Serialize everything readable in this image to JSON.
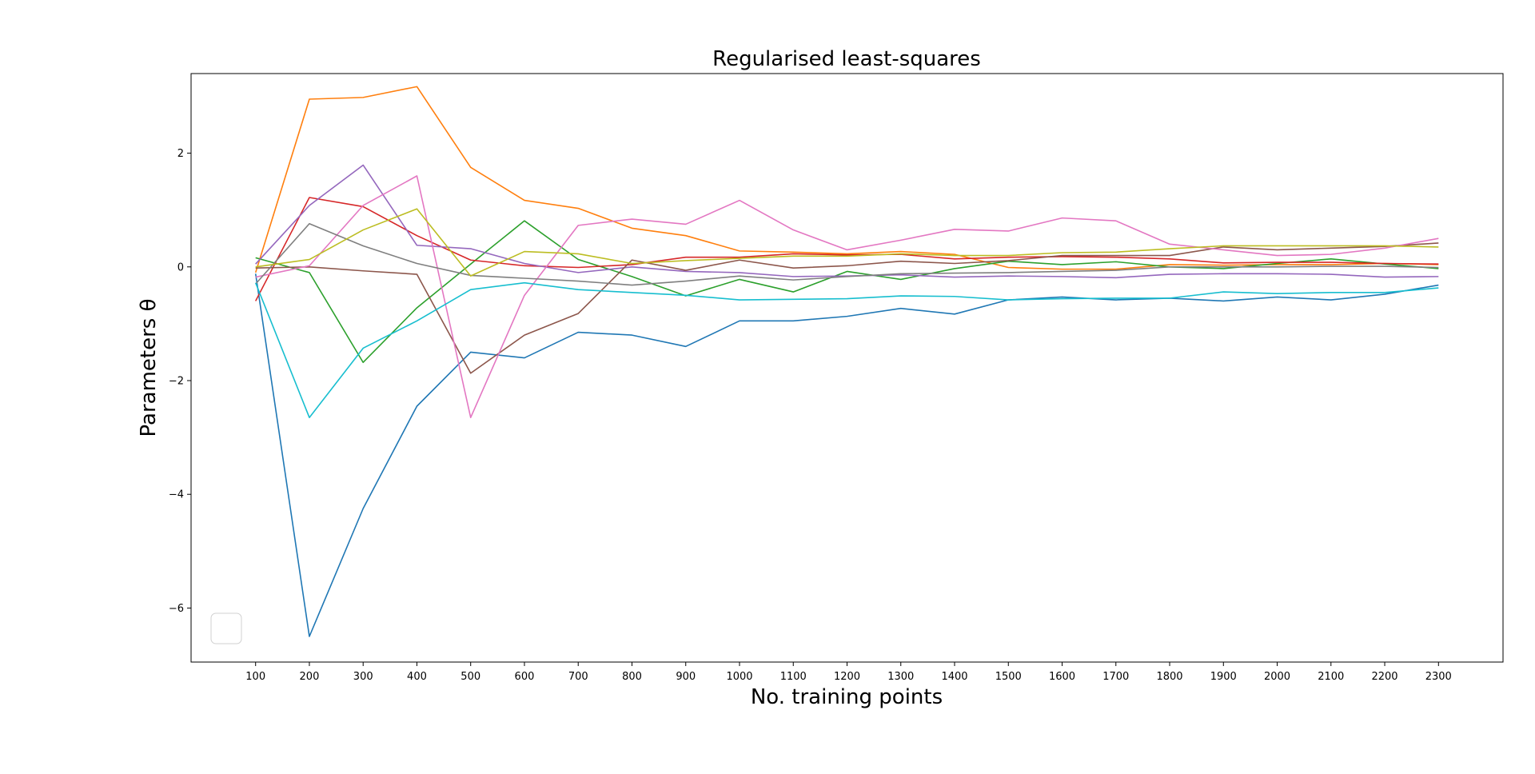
{
  "chart_data": {
    "type": "line",
    "title": "Regularised least-squares",
    "xlabel": "No. training points",
    "ylabel": "Parameters θ",
    "x": [
      100,
      200,
      300,
      400,
      500,
      600,
      700,
      800,
      900,
      1000,
      1100,
      1200,
      1300,
      1400,
      1500,
      1600,
      1700,
      1800,
      1900,
      2000,
      2100,
      2200,
      2300
    ],
    "xlim": [
      -20,
      2420
    ],
    "ylim": [
      -6.95,
      3.4
    ],
    "yticks": [
      -6,
      -4,
      -2,
      0,
      2
    ],
    "ytick_labels": [
      "−6",
      "−4",
      "−2",
      "0",
      "2"
    ],
    "grid": false,
    "legend": {
      "placement": "lower-left",
      "entries": []
    },
    "series": [
      {
        "color": "#1f77b4",
        "values": [
          -0.12,
          -6.5,
          -4.25,
          -2.45,
          -1.5,
          -1.6,
          -1.15,
          -1.2,
          -1.4,
          -0.95,
          -0.95,
          -0.87,
          -0.73,
          -0.83,
          -0.58,
          -0.53,
          -0.58,
          -0.55,
          -0.6,
          -0.53,
          -0.58,
          -0.48,
          -0.32
        ]
      },
      {
        "color": "#ff7f0e",
        "values": [
          -0.1,
          2.95,
          2.98,
          3.17,
          1.75,
          1.17,
          1.03,
          0.68,
          0.55,
          0.28,
          0.26,
          0.23,
          0.27,
          0.22,
          -0.01,
          -0.04,
          -0.04,
          0.04,
          0.03,
          0.04,
          0.04,
          0.06,
          0.04
        ]
      },
      {
        "color": "#2ca02c",
        "values": [
          0.16,
          -0.1,
          -1.68,
          -0.72,
          0.05,
          0.81,
          0.13,
          -0.17,
          -0.51,
          -0.22,
          -0.44,
          -0.08,
          -0.22,
          -0.03,
          0.1,
          0.04,
          0.09,
          0.0,
          -0.03,
          0.06,
          0.14,
          0.05,
          -0.03
        ]
      },
      {
        "color": "#d62728",
        "values": [
          -0.6,
          1.22,
          1.06,
          0.55,
          0.12,
          0.02,
          -0.01,
          0.04,
          0.17,
          0.17,
          0.23,
          0.21,
          0.22,
          0.14,
          0.17,
          0.18,
          0.17,
          0.14,
          0.07,
          0.08,
          0.08,
          0.06,
          0.05
        ]
      },
      {
        "color": "#9467bd",
        "values": [
          0.05,
          1.08,
          1.79,
          0.38,
          0.32,
          0.06,
          -0.1,
          0.0,
          -0.08,
          -0.1,
          -0.17,
          -0.16,
          -0.14,
          -0.18,
          -0.16,
          -0.17,
          -0.19,
          -0.13,
          -0.12,
          -0.12,
          -0.13,
          -0.18,
          -0.17
        ]
      },
      {
        "color": "#8c564b",
        "values": [
          -0.02,
          0.0,
          -0.07,
          -0.13,
          -1.87,
          -1.2,
          -0.82,
          0.12,
          -0.06,
          0.12,
          -0.02,
          0.02,
          0.1,
          0.06,
          0.11,
          0.2,
          0.2,
          0.2,
          0.35,
          0.3,
          0.33,
          0.36,
          0.42
        ]
      },
      {
        "color": "#e377c2",
        "values": [
          -0.18,
          0.02,
          1.08,
          1.6,
          -2.65,
          -0.5,
          0.73,
          0.84,
          0.75,
          1.17,
          0.65,
          0.3,
          0.47,
          0.66,
          0.63,
          0.86,
          0.81,
          0.4,
          0.3,
          0.2,
          0.22,
          0.33,
          0.5
        ]
      },
      {
        "color": "#7f7f7f",
        "values": [
          -0.3,
          0.76,
          0.37,
          0.06,
          -0.15,
          -0.2,
          -0.25,
          -0.32,
          -0.25,
          -0.16,
          -0.23,
          -0.17,
          -0.12,
          -0.11,
          -0.1,
          -0.08,
          -0.06,
          0.0,
          0.0,
          0.0,
          0.01,
          0.01,
          -0.01
        ]
      },
      {
        "color": "#bcbd22",
        "values": [
          0.0,
          0.13,
          0.65,
          1.02,
          -0.16,
          0.27,
          0.23,
          0.06,
          0.11,
          0.15,
          0.19,
          0.19,
          0.23,
          0.2,
          0.2,
          0.25,
          0.26,
          0.32,
          0.37,
          0.37,
          0.37,
          0.37,
          0.35
        ]
      },
      {
        "color": "#17becf",
        "values": [
          -0.28,
          -2.65,
          -1.43,
          -0.95,
          -0.4,
          -0.28,
          -0.4,
          -0.45,
          -0.5,
          -0.58,
          -0.57,
          -0.56,
          -0.51,
          -0.52,
          -0.58,
          -0.56,
          -0.55,
          -0.55,
          -0.44,
          -0.47,
          -0.45,
          -0.45,
          -0.37
        ]
      }
    ]
  }
}
